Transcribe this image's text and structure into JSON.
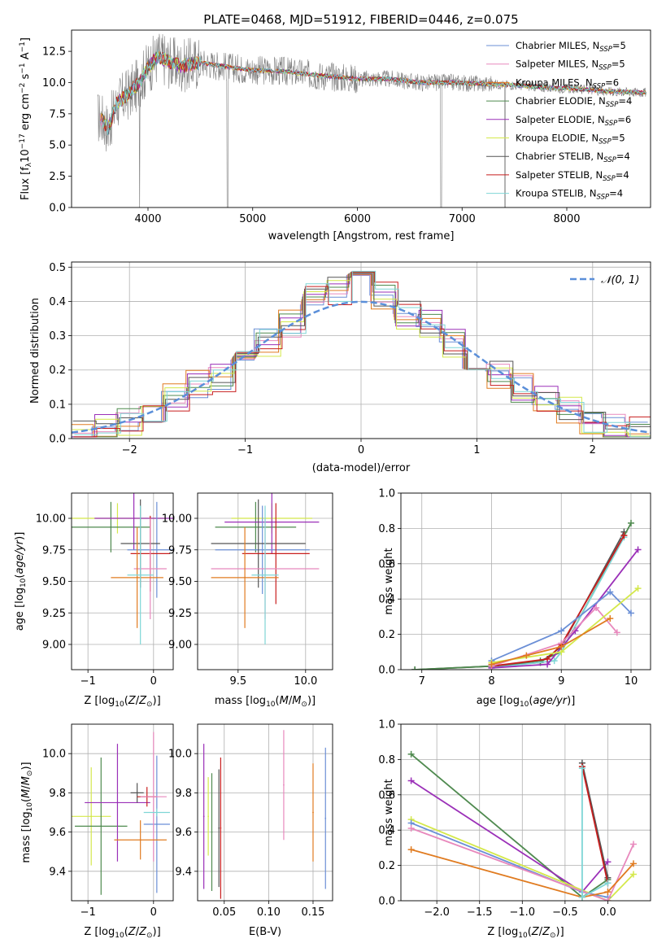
{
  "chart_data": [
    {
      "type": "line",
      "title": "PLATE=0468, MJD=51912, FIBERID=0446, z=0.075",
      "xlabel": "wavelength [Angstrom, rest frame]",
      "ylabel": "Flux [f_λ10^-17 erg cm^-2 s^-1 A^-1]",
      "xlim": [
        3270,
        8800
      ],
      "ylim": [
        0,
        14.2
      ],
      "xticks": [
        "4000",
        "5000",
        "6000",
        "7000",
        "8000"
      ],
      "yticks": [
        "0.0",
        "2.5",
        "5.0",
        "7.5",
        "10.0",
        "12.5"
      ],
      "legend_position": "upper-right",
      "series": [
        {
          "name": "Chabrier MILES, N_SSP=5",
          "color": "#6b8fd6"
        },
        {
          "name": "Salpeter MILES, N_SSP=5",
          "color": "#e889bd"
        },
        {
          "name": "Kroupa MILES, N_SSP=6",
          "color": "#e07b20"
        },
        {
          "name": "Chabrier ELODIE, N_SSP=4",
          "color": "#4f8a4f"
        },
        {
          "name": "Salpeter ELODIE, N_SSP=6",
          "color": "#9b30b8"
        },
        {
          "name": "Kroupa ELODIE, N_SSP=5",
          "color": "#d4e84a"
        },
        {
          "name": "Chabrier STELIB, N_SSP=4",
          "color": "#555555"
        },
        {
          "name": "Salpeter STELIB, N_SSP=4",
          "color": "#c81e1e"
        },
        {
          "name": "Kroupa STELIB, N_SSP=4",
          "color": "#7fd6d6"
        }
      ],
      "data_series_color": "#808080",
      "spectrum_anchor_points": {
        "x": [
          3550,
          3620,
          3700,
          3800,
          3900,
          4000,
          4100,
          4300,
          4500,
          4800,
          5000,
          5300,
          5600,
          6000,
          6300,
          6600,
          6900,
          7200,
          7500,
          7800,
          8100,
          8400,
          8750
        ],
        "y": [
          7.2,
          6.3,
          8.3,
          9.0,
          9.8,
          11.2,
          12.1,
          11.3,
          11.6,
          11.2,
          11.0,
          10.9,
          10.6,
          10.3,
          10.3,
          10.0,
          10.0,
          9.9,
          9.8,
          9.6,
          9.5,
          9.3,
          9.2
        ]
      }
    },
    {
      "type": "bar",
      "xlabel": "(data-model)/error",
      "ylabel": "Normed distribution",
      "xlim": [
        -2.5,
        2.5
      ],
      "ylim": [
        0,
        0.515
      ],
      "xticks": [
        "−2",
        "−1",
        "0",
        "1",
        "2"
      ],
      "yticks": [
        "0.0",
        "0.1",
        "0.2",
        "0.3",
        "0.4",
        "0.5"
      ],
      "legend": [
        "𝒩(0, 1)"
      ],
      "gaussian_color": "#5b8fd9",
      "bin_centers": [
        -2.4,
        -2.2,
        -2.0,
        -1.8,
        -1.6,
        -1.4,
        -1.2,
        -1.0,
        -0.8,
        -0.6,
        -0.4,
        -0.2,
        0.0,
        0.2,
        0.4,
        0.6,
        0.8,
        1.0,
        1.2,
        1.4,
        1.6,
        1.8,
        2.0,
        2.2,
        2.4
      ],
      "histogram_envelope": [
        0.02,
        0.035,
        0.05,
        0.07,
        0.12,
        0.16,
        0.18,
        0.23,
        0.28,
        0.34,
        0.41,
        0.43,
        0.45,
        0.42,
        0.36,
        0.33,
        0.28,
        0.24,
        0.19,
        0.15,
        0.11,
        0.08,
        0.05,
        0.035,
        0.02
      ]
    },
    {
      "type": "scatter",
      "xlabel": "Z [log10(Z/Z_⊙)]",
      "ylabel": "age [log10(age/yr)]",
      "xlim": [
        -1.25,
        0.3
      ],
      "ylim": [
        8.8,
        10.2
      ],
      "xticks": [
        "−1",
        "0"
      ],
      "yticks": [
        "9.00",
        "9.25",
        "9.50",
        "9.75",
        "10.00"
      ],
      "points": [
        {
          "color": "#d4e84a",
          "x": -0.55,
          "y": 10.0,
          "xerr": 0.75,
          "yerr": 0.12
        },
        {
          "color": "#4f8a4f",
          "x": -0.65,
          "y": 9.93,
          "xerr": 0.6,
          "yerr": 0.2
        },
        {
          "color": "#9b30b8",
          "x": -0.3,
          "y": 10.0,
          "xerr": 0.6,
          "yerr": 0.25
        },
        {
          "color": "#6b8fd6",
          "x": 0.05,
          "y": 9.75,
          "xerr": 0.45,
          "yerr": 0.38
        },
        {
          "color": "#555555",
          "x": -0.2,
          "y": 9.8,
          "xerr": 0.3,
          "yerr": 0.35
        },
        {
          "color": "#c81e1e",
          "x": -0.05,
          "y": 9.72,
          "xerr": 0.3,
          "yerr": 0.3
        },
        {
          "color": "#e889bd",
          "x": -0.05,
          "y": 9.6,
          "xerr": 0.25,
          "yerr": 0.4
        },
        {
          "color": "#e07b20",
          "x": -0.25,
          "y": 9.53,
          "xerr": 0.4,
          "yerr": 0.4
        },
        {
          "color": "#7fd6d6",
          "x": -0.2,
          "y": 9.55,
          "xerr": 0.2,
          "yerr": 0.55
        }
      ]
    },
    {
      "type": "scatter",
      "xlabel": "mass [log10(M/M_⊙)]",
      "xlim": [
        9.2,
        10.2
      ],
      "ylim": [
        8.8,
        10.2
      ],
      "xticks": [
        "9.5",
        "10.0"
      ],
      "yticks": [
        "9.00",
        "9.25",
        "9.50",
        "9.75",
        "10.00"
      ],
      "points": [
        {
          "color": "#d4e84a",
          "x": 9.75,
          "y": 10.0,
          "xerr": 0.3,
          "yerr": 0.12
        },
        {
          "color": "#4f8a4f",
          "x": 9.63,
          "y": 9.93,
          "xerr": 0.3,
          "yerr": 0.2
        },
        {
          "color": "#9b30b8",
          "x": 9.75,
          "y": 9.97,
          "xerr": 0.35,
          "yerr": 0.25
        },
        {
          "color": "#6b8fd6",
          "x": 9.68,
          "y": 9.75,
          "xerr": 0.35,
          "yerr": 0.35
        },
        {
          "color": "#555555",
          "x": 9.65,
          "y": 9.8,
          "xerr": 0.35,
          "yerr": 0.35
        },
        {
          "color": "#c81e1e",
          "x": 9.78,
          "y": 9.72,
          "xerr": 0.25,
          "yerr": 0.4
        },
        {
          "color": "#e889bd",
          "x": 9.7,
          "y": 9.6,
          "xerr": 0.4,
          "yerr": 0.4
        },
        {
          "color": "#e07b20",
          "x": 9.55,
          "y": 9.53,
          "xerr": 0.25,
          "yerr": 0.4
        },
        {
          "color": "#7fd6d6",
          "x": 9.7,
          "y": 9.55,
          "xerr": 0.1,
          "yerr": 0.55
        }
      ]
    },
    {
      "type": "line",
      "xlabel": "age [log10(age/yr)]",
      "ylabel": "mass weight",
      "xlim": [
        6.7,
        10.28
      ],
      "ylim": [
        0,
        1.0
      ],
      "xticks": [
        "7",
        "8",
        "9",
        "10"
      ],
      "yticks": [
        "0.0",
        "0.2",
        "0.4",
        "0.6",
        "0.8",
        "1.0"
      ],
      "series": [
        {
          "color": "#555555",
          "x": [
            6.9,
            8.0,
            8.7,
            9.0,
            9.9
          ],
          "y": [
            0.0,
            0.02,
            0.04,
            0.13,
            0.78
          ]
        },
        {
          "color": "#4f8a4f",
          "x": [
            6.9,
            8.0,
            8.7,
            9.0,
            10.0
          ],
          "y": [
            0.0,
            0.02,
            0.05,
            0.1,
            0.83
          ]
        },
        {
          "color": "#7fd6d6",
          "x": [
            8.0,
            8.9,
            9.0,
            9.9
          ],
          "y": [
            0.01,
            0.05,
            0.1,
            0.75
          ]
        },
        {
          "color": "#c81e1e",
          "x": [
            8.0,
            8.8,
            9.0,
            9.9
          ],
          "y": [
            0.02,
            0.06,
            0.14,
            0.76
          ]
        },
        {
          "color": "#9b30b8",
          "x": [
            8.0,
            8.8,
            9.2,
            10.1
          ],
          "y": [
            0.01,
            0.03,
            0.22,
            0.68
          ]
        },
        {
          "color": "#6b8fd6",
          "x": [
            8.0,
            9.0,
            9.7,
            10.0
          ],
          "y": [
            0.05,
            0.22,
            0.44,
            0.32
          ]
        },
        {
          "color": "#e889bd",
          "x": [
            8.0,
            9.0,
            9.5,
            9.8
          ],
          "y": [
            0.02,
            0.15,
            0.35,
            0.21
          ]
        },
        {
          "color": "#d4e84a",
          "x": [
            8.0,
            9.0,
            10.1
          ],
          "y": [
            0.04,
            0.1,
            0.46
          ]
        },
        {
          "color": "#e07b20",
          "x": [
            8.0,
            8.5,
            9.0,
            9.7
          ],
          "y": [
            0.03,
            0.08,
            0.13,
            0.29
          ]
        }
      ]
    },
    {
      "type": "scatter",
      "xlabel": "Z [log10(Z/Z_⊙)]",
      "ylabel": "mass [log10(M/M_⊙)]",
      "xlim": [
        -1.25,
        0.3
      ],
      "ylim": [
        9.25,
        10.15
      ],
      "xticks": [
        "−1",
        "0"
      ],
      "yticks": [
        "9.4",
        "9.6",
        "9.8",
        "10.0"
      ],
      "points": [
        {
          "color": "#d4e84a",
          "x": -0.95,
          "y": 9.68,
          "xerr": 0.3,
          "yerr": 0.25
        },
        {
          "color": "#4f8a4f",
          "x": -0.8,
          "y": 9.63,
          "xerr": 0.4,
          "yerr": 0.35
        },
        {
          "color": "#9b30b8",
          "x": -0.55,
          "y": 9.75,
          "xerr": 0.5,
          "yerr": 0.3
        },
        {
          "color": "#555555",
          "x": -0.25,
          "y": 9.8,
          "xerr": 0.1,
          "yerr": 0.05
        },
        {
          "color": "#c81e1e",
          "x": -0.1,
          "y": 9.78,
          "xerr": 0.15,
          "yerr": 0.05
        },
        {
          "color": "#6b8fd6",
          "x": 0.05,
          "y": 9.64,
          "xerr": 0.2,
          "yerr": 0.35
        },
        {
          "color": "#e889bd",
          "x": 0.0,
          "y": 9.78,
          "xerr": 0.2,
          "yerr": 0.33
        },
        {
          "color": "#e07b20",
          "x": -0.2,
          "y": 9.56,
          "xerr": 0.4,
          "yerr": 0.1
        },
        {
          "color": "#7fd6d6",
          "x": 0.05,
          "y": 9.7,
          "xerr": 0.2,
          "yerr": 0.02
        }
      ]
    },
    {
      "type": "scatter",
      "xlabel": "E(B-V)",
      "xlim": [
        0.02,
        0.172
      ],
      "ylim": [
        9.25,
        10.15
      ],
      "xticks": [
        "0.05",
        "0.10",
        "0.15"
      ],
      "yticks": [
        "9.4",
        "9.6",
        "9.8",
        "10.0"
      ],
      "points": [
        {
          "color": "#9b30b8",
          "x": 0.027,
          "y": 9.68,
          "yerr": 0.37
        },
        {
          "color": "#d4e84a",
          "x": 0.032,
          "y": 9.68,
          "yerr": 0.2
        },
        {
          "color": "#4f8a4f",
          "x": 0.036,
          "y": 9.6,
          "yerr": 0.3
        },
        {
          "color": "#555555",
          "x": 0.044,
          "y": 9.62,
          "yerr": 0.3
        },
        {
          "color": "#c81e1e",
          "x": 0.046,
          "y": 9.62,
          "yerr": 0.36
        },
        {
          "color": "#e889bd",
          "x": 0.117,
          "y": 9.84,
          "yerr": 0.28
        },
        {
          "color": "#e07b20",
          "x": 0.15,
          "y": 9.7,
          "yerr": 0.25
        },
        {
          "color": "#6b8fd6",
          "x": 0.164,
          "y": 9.67,
          "yerr": 0.36
        }
      ]
    },
    {
      "type": "line",
      "xlabel": "Z [log10(Z/Z_⊙)]",
      "ylabel": "mass weight",
      "xlim": [
        -2.42,
        0.5
      ],
      "ylim": [
        0,
        1.0
      ],
      "xticks": [
        "−2.0",
        "−1.5",
        "−1.0",
        "−0.5",
        "0.0"
      ],
      "yticks": [
        "0.0",
        "0.2",
        "0.4",
        "0.6",
        "0.8",
        "1.0"
      ],
      "series": [
        {
          "color": "#4f8a4f",
          "x": [
            -2.3,
            -0.3,
            0.0
          ],
          "y": [
            0.83,
            0.02,
            0.12
          ]
        },
        {
          "color": "#9b30b8",
          "x": [
            -2.3,
            -0.3,
            0.0
          ],
          "y": [
            0.68,
            0.05,
            0.22
          ]
        },
        {
          "color": "#d4e84a",
          "x": [
            -2.3,
            0.0,
            0.3
          ],
          "y": [
            0.46,
            0.0,
            0.15
          ]
        },
        {
          "color": "#6b8fd6",
          "x": [
            -2.3,
            -0.3,
            0.0
          ],
          "y": [
            0.44,
            0.05,
            0.02
          ]
        },
        {
          "color": "#e889bd",
          "x": [
            -2.3,
            0.0,
            0.3
          ],
          "y": [
            0.41,
            0.0,
            0.32
          ]
        },
        {
          "color": "#e07b20",
          "x": [
            -2.3,
            -0.3,
            0.0,
            0.3
          ],
          "y": [
            0.29,
            0.02,
            0.05,
            0.21
          ]
        },
        {
          "color": "#555555",
          "x": [
            -0.3,
            0.0
          ],
          "y": [
            0.78,
            0.13
          ]
        },
        {
          "color": "#c81e1e",
          "x": [
            -0.3,
            0.0
          ],
          "y": [
            0.76,
            0.1
          ]
        },
        {
          "color": "#7fd6d6",
          "x": [
            -0.3,
            -0.3,
            0.0
          ],
          "y": [
            0.75,
            0.02,
            0.1
          ]
        }
      ]
    }
  ]
}
